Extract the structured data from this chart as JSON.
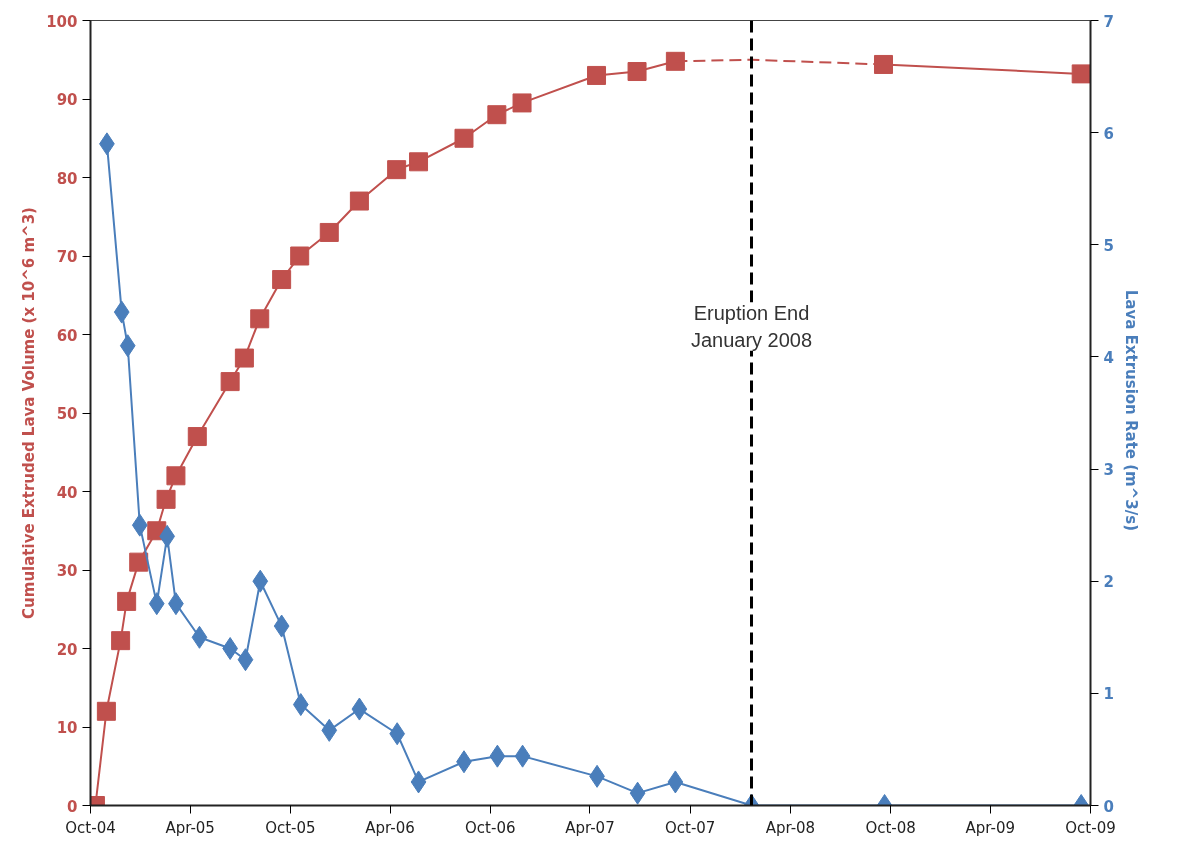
{
  "chart_data": {
    "type": "line",
    "ylabel": "Cumulative Extruded Lava Volume (x 10^6 m^3)",
    "y2label": "Lava Extrusion  Rate (m^3/s)",
    "xlim": [
      "2004-10-01",
      "2009-10-01"
    ],
    "xticks": [
      {
        "value": "2004-10-01",
        "label": "Oct-04"
      },
      {
        "value": "2005-04-01",
        "label": "Apr-05"
      },
      {
        "value": "2005-10-01",
        "label": "Oct-05"
      },
      {
        "value": "2006-04-01",
        "label": "Apr-06"
      },
      {
        "value": "2006-10-01",
        "label": "Oct-06"
      },
      {
        "value": "2007-04-01",
        "label": "Apr-07"
      },
      {
        "value": "2007-10-01",
        "label": "Oct-07"
      },
      {
        "value": "2008-04-01",
        "label": "Apr-08"
      },
      {
        "value": "2008-10-01",
        "label": "Oct-08"
      },
      {
        "value": "2009-04-01",
        "label": "Apr-09"
      },
      {
        "value": "2009-10-01",
        "label": "Oct-09"
      }
    ],
    "ylim": [
      0,
      100
    ],
    "yticks": [
      0,
      10,
      20,
      30,
      40,
      50,
      60,
      70,
      80,
      90,
      100
    ],
    "y2lim": [
      0,
      7
    ],
    "y2ticks": [
      0,
      1,
      2,
      3,
      4,
      5,
      6,
      7
    ],
    "grid": false,
    "series": [
      {
        "color": "#c0504d",
        "marker": "square",
        "line_style": "solid",
        "x": [
          "2004-10-10",
          "2004-10-30",
          "2004-11-25",
          "2004-12-06",
          "2004-12-28",
          "2005-01-30",
          "2005-02-16",
          "2005-03-06",
          "2005-04-14",
          "2005-06-13",
          "2005-07-09",
          "2005-08-06",
          "2005-09-15",
          "2005-10-18",
          "2005-12-11",
          "2006-02-04",
          "2006-04-13",
          "2006-05-23",
          "2006-08-14",
          "2006-10-13",
          "2006-11-28",
          "2007-04-13",
          "2007-06-26",
          "2007-09-04"
        ],
        "values": [
          0,
          12,
          21,
          26,
          31,
          35,
          39,
          42,
          47,
          54,
          57,
          62,
          67,
          70,
          73,
          77,
          81,
          82,
          85,
          88,
          89.5,
          93,
          93.5,
          94.8
        ]
      },
      {
        "color": "#c0504d",
        "marker": "none",
        "line_style": "dashed",
        "x": [
          "2007-09-04",
          "2008-01-21",
          "2008-09-18"
        ],
        "values": [
          94.8,
          95,
          94.4
        ]
      },
      {
        "color": "#c0504d",
        "marker": "square",
        "line_style": "solid",
        "x": [
          "2008-09-18",
          "2009-09-14"
        ],
        "values": [
          94.4,
          93.2
        ]
      },
      {
        "color": "#4a7ebb",
        "marker": "diamond",
        "line_style": "solid",
        "axis": "y2",
        "x": [
          "2004-10-31",
          "2004-11-27",
          "2004-12-08",
          "2004-12-30",
          "2005-01-30",
          "2005-02-18",
          "2005-03-06",
          "2005-04-18",
          "2005-06-13",
          "2005-07-11",
          "2005-08-07",
          "2005-09-15",
          "2005-10-20",
          "2005-12-11",
          "2006-02-04",
          "2006-04-14",
          "2006-05-23",
          "2006-08-14",
          "2006-10-14",
          "2006-11-29",
          "2007-04-14",
          "2007-06-27",
          "2007-09-04",
          "2008-01-21",
          "2008-09-20",
          "2009-09-14"
        ],
        "values": [
          5.9,
          4.4,
          4.1,
          2.5,
          1.8,
          2.4,
          1.8,
          1.5,
          1.4,
          1.3,
          2.0,
          1.6,
          0.9,
          0.67,
          0.86,
          0.64,
          0.21,
          0.39,
          0.44,
          0.44,
          0.26,
          0.11,
          0.21,
          0,
          0,
          0
        ]
      }
    ],
    "ref_lines": [
      {
        "axis": "x",
        "value": "2008-01-21",
        "label": "Eruption End\nJanuary 2008",
        "color": "#000000",
        "line_style": "dashed"
      }
    ]
  }
}
